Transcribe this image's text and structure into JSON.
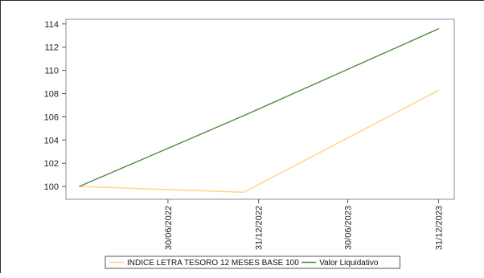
{
  "chart_data": {
    "type": "line",
    "x": [
      "2022-01-01",
      "2022-12-01",
      "2024-01-01"
    ],
    "ylim": [
      98.9,
      114.4
    ],
    "xlim": [
      "2021-12-05",
      "2024-02-01"
    ],
    "yticks": [
      100,
      102,
      104,
      106,
      108,
      110,
      112,
      114
    ],
    "yticklabels": [
      "100",
      "102",
      "104",
      "106",
      "108",
      "110",
      "112",
      "114"
    ],
    "xticks": [
      "2022-06-30",
      "2022-12-31",
      "2023-06-30",
      "2023-12-31"
    ],
    "xticklabels": [
      "30/06/2022",
      "31/12/2022",
      "30/06/2023",
      "31/12/2023"
    ],
    "series": [
      {
        "name": "INDICE LETRA TESORO 12 MESES BASE 100",
        "color": "#ffd37f",
        "values": [
          100.0,
          99.5,
          108.3
        ]
      },
      {
        "name": "Valor Liquidativo",
        "color": "#4f8a3c",
        "values": [
          100.0,
          106.1,
          113.6
        ]
      }
    ],
    "grid": false,
    "legend_position": "bottom"
  }
}
